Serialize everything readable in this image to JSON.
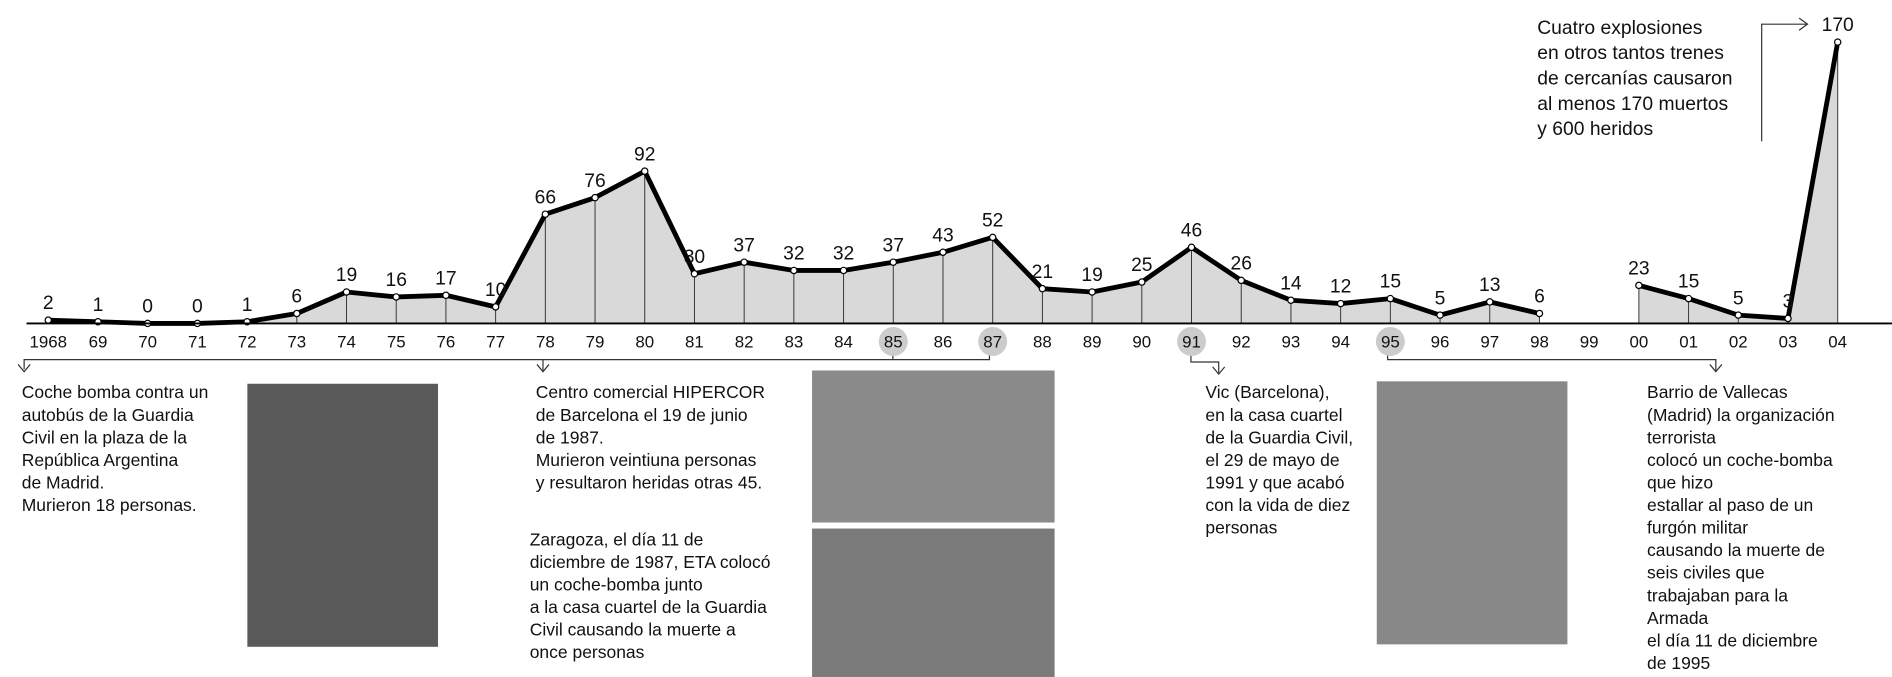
{
  "chart_data": {
    "type": "area-line",
    "categories": [
      "1968",
      "69",
      "70",
      "71",
      "72",
      "73",
      "74",
      "75",
      "76",
      "77",
      "78",
      "79",
      "80",
      "81",
      "82",
      "83",
      "84",
      "85",
      "86",
      "87",
      "88",
      "89",
      "90",
      "91",
      "92",
      "93",
      "94",
      "95",
      "96",
      "97",
      "98",
      "99",
      "00",
      "01",
      "02",
      "03",
      "04"
    ],
    "values": [
      2,
      1,
      0,
      0,
      1,
      6,
      19,
      16,
      17,
      10,
      66,
      76,
      92,
      30,
      37,
      32,
      32,
      37,
      43,
      52,
      21,
      19,
      25,
      46,
      26,
      14,
      12,
      15,
      5,
      13,
      6,
      null,
      23,
      15,
      5,
      3,
      170
    ],
    "ylim": [
      0,
      175
    ],
    "line_color": "#000000",
    "fill_color": "#d9d9d9",
    "highlight": [
      "85",
      "87",
      "91",
      "95"
    ],
    "annotations": [
      [
        "Coche bomba contra un",
        "autobús de la Guardia",
        "Civil en la plaza de la",
        "República Argentina",
        "de Madrid.",
        "Murieron 18 personas."
      ],
      [
        "Centro comercial HIPERCOR",
        "de Barcelona el 19 de junio",
        "de 1987.",
        "Murieron veintiuna personas",
        "y resultaron heridas otras 45."
      ],
      [
        "Zaragoza, el día 11 de",
        "diciembre de 1987, ETA colocó",
        "un coche-bomba junto",
        "a la casa cuartel de la Guardia",
        "Civil causando la muerte a",
        "once personas"
      ],
      [
        "Vic (Barcelona),",
        "en la casa cuartel",
        "de la Guardia Civil,",
        "el 29 de mayo de",
        "1991 y que acabó",
        "con la vida de diez",
        "personas"
      ],
      [
        "Barrio de Vallecas",
        "(Madrid) la organización",
        "terrorista",
        "colocó un coche-bomba",
        "que hizo",
        "estallar al paso de un",
        "furgón militar",
        "causando la muerte de",
        "seis civiles que",
        "trabajaban para la",
        "Armada",
        "el día 11 de diciembre",
        "de 1995"
      ],
      [
        "Cuatro explosiones",
        "en otros tantos trenes",
        "de cercanías causaron",
        "al menos 170 muertos",
        "y 600 heridos"
      ]
    ]
  }
}
